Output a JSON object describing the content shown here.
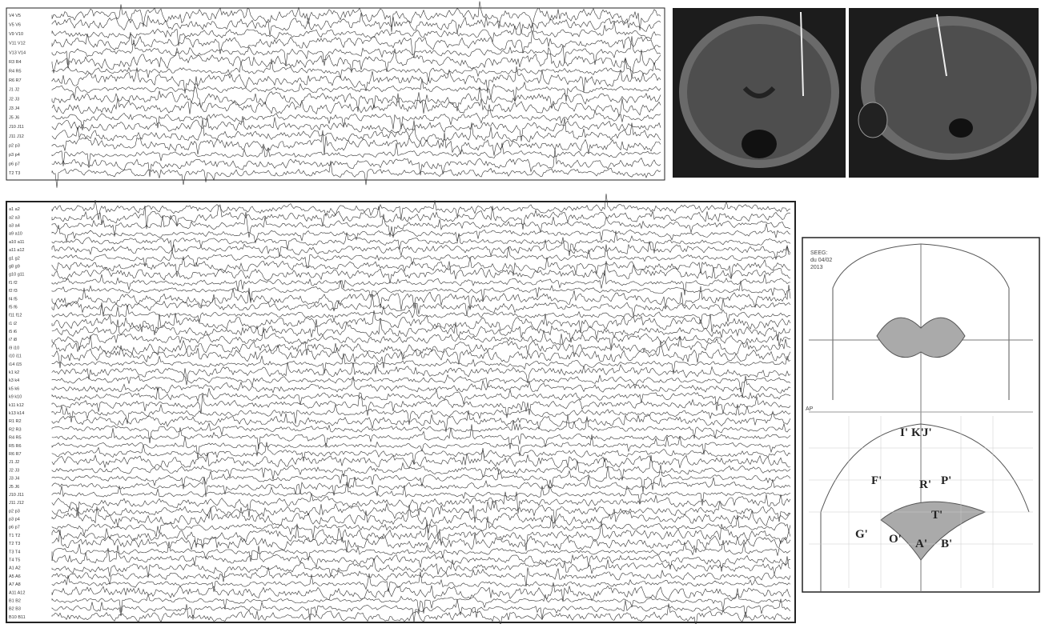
{
  "top_eeg": {
    "channels": [
      "V4 V5",
      "V5 V6",
      "V9 V10",
      "V11 V12",
      "V13 V14",
      "R3 R4",
      "R4 R5",
      "R6 R7",
      "J1 J2",
      "J2 J3",
      "J3 J4",
      "J5 J6",
      "J10 J11",
      "J11 J12",
      "p2 p3",
      "p3 p4",
      "p6 p7",
      "T2 T3"
    ]
  },
  "bottom_eeg": {
    "channels": [
      "a1 a2",
      "a2 a3",
      "a3 a4",
      "a9 a10",
      "a10 a11",
      "a11 a12",
      "g1 g2",
      "g8 g9",
      "g10 g11",
      "f1 f2",
      "f2 f3",
      "f4 f5",
      "f5 f6",
      "f11 f12",
      "i1 i2",
      "i5 i6",
      "i7 i8",
      "i9 i10",
      "i10 i11",
      "i14 i15",
      "k1 k2",
      "k3 k4",
      "k5 k6",
      "k9 k10",
      "k11 k12",
      "k13 k14",
      "R1 R2",
      "R2 R3",
      "R4 R5",
      "R5 R6",
      "R6 R7",
      "J1 J2",
      "J2 J3",
      "J3 J4",
      "J5 J6",
      "J10 J11",
      "J11 J12",
      "p2 p3",
      "p3 p4",
      "p6 p7",
      "T1 T2",
      "T2 T3",
      "T3 T4",
      "T4 T5",
      "A1 A2",
      "A5 A6",
      "A7 A8",
      "A11 A12",
      "B1 B2",
      "B2 B3",
      "B10 B11"
    ]
  },
  "schematic": {
    "note_lines": [
      "SEEG:",
      "du 04/02",
      "2013"
    ],
    "view_label": "AP",
    "electrodes": [
      "I'",
      "K'",
      "J'",
      "F'",
      "R'",
      "P'",
      "T'",
      "G'",
      "O'",
      "A'",
      "B'"
    ]
  }
}
